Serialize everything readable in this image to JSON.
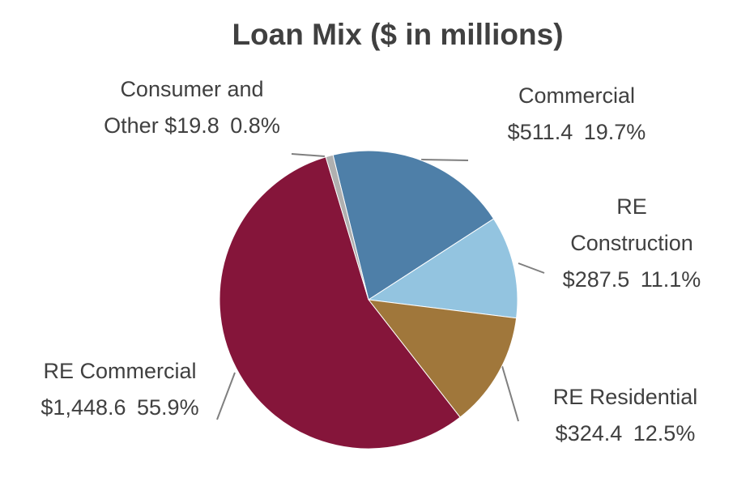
{
  "chart_data": {
    "type": "pie",
    "title": "Loan Mix ($ in millions)",
    "categories": [
      "Commercial",
      "RE Construction",
      "RE Residential",
      "RE Commercial",
      "Consumer and Other"
    ],
    "values": [
      19.7,
      11.1,
      12.5,
      55.9,
      0.8
    ],
    "value_labels": [
      "19.7%",
      "11.1%",
      "12.5%",
      "55.9%",
      "0.8%"
    ],
    "amounts": [
      511.4,
      287.5,
      324.4,
      1448.6,
      19.8
    ],
    "amount_labels": [
      "$511.4",
      "$287.5",
      "$324.4",
      "$1,448.6",
      "$19.8"
    ],
    "colors": [
      "#4e7fa8",
      "#93c4e0",
      "#a0773b",
      "#85153a",
      "#b0b0b0"
    ]
  }
}
